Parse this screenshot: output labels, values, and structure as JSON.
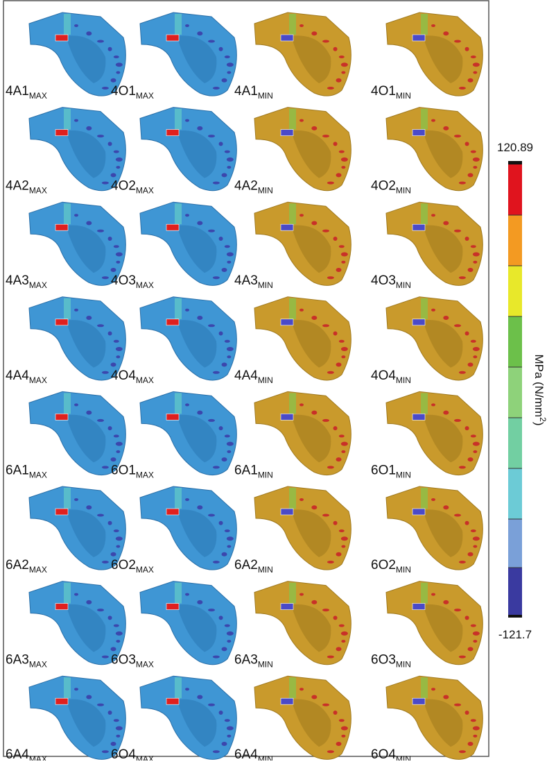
{
  "panels": [
    [
      {
        "name": "4A1",
        "sub": "MAX"
      },
      {
        "name": "4O1",
        "sub": "MAX"
      },
      {
        "name": "4A1",
        "sub": "MIN"
      },
      {
        "name": "4O1",
        "sub": "MIN"
      }
    ],
    [
      {
        "name": "4A2",
        "sub": "MAX"
      },
      {
        "name": "4O2",
        "sub": "MAX"
      },
      {
        "name": "4A2",
        "sub": "MIN"
      },
      {
        "name": "4O2",
        "sub": "MIN"
      }
    ],
    [
      {
        "name": "4A3",
        "sub": "MAX"
      },
      {
        "name": "4O3",
        "sub": "MAX"
      },
      {
        "name": "4A3",
        "sub": "MIN"
      },
      {
        "name": "4O3",
        "sub": "MIN"
      }
    ],
    [
      {
        "name": "4A4",
        "sub": "MAX"
      },
      {
        "name": "4O4",
        "sub": "MAX"
      },
      {
        "name": "4A4",
        "sub": "MIN"
      },
      {
        "name": "4O4",
        "sub": "MIN"
      }
    ],
    [
      {
        "name": "6A1",
        "sub": "MAX"
      },
      {
        "name": "6O1",
        "sub": "MAX"
      },
      {
        "name": "6A1",
        "sub": "MIN"
      },
      {
        "name": "6O1",
        "sub": "MIN"
      }
    ],
    [
      {
        "name": "6A2",
        "sub": "MAX"
      },
      {
        "name": "6O2",
        "sub": "MAX"
      },
      {
        "name": "6A2",
        "sub": "MIN"
      },
      {
        "name": "6O2",
        "sub": "MIN"
      }
    ],
    [
      {
        "name": "6A3",
        "sub": "MAX"
      },
      {
        "name": "6O3",
        "sub": "MAX"
      },
      {
        "name": "6A3",
        "sub": "MIN"
      },
      {
        "name": "6O3",
        "sub": "MIN"
      }
    ],
    [
      {
        "name": "6A4",
        "sub": "MAX"
      },
      {
        "name": "6O4",
        "sub": "MAX"
      },
      {
        "name": "6A4",
        "sub": "MIN"
      },
      {
        "name": "6O4",
        "sub": "MIN"
      }
    ]
  ],
  "legend": {
    "max": "120.89",
    "min": "-121.7",
    "unit": "MPa (N/mm",
    "unit_sup": "2",
    "unit_end": ")"
  }
}
